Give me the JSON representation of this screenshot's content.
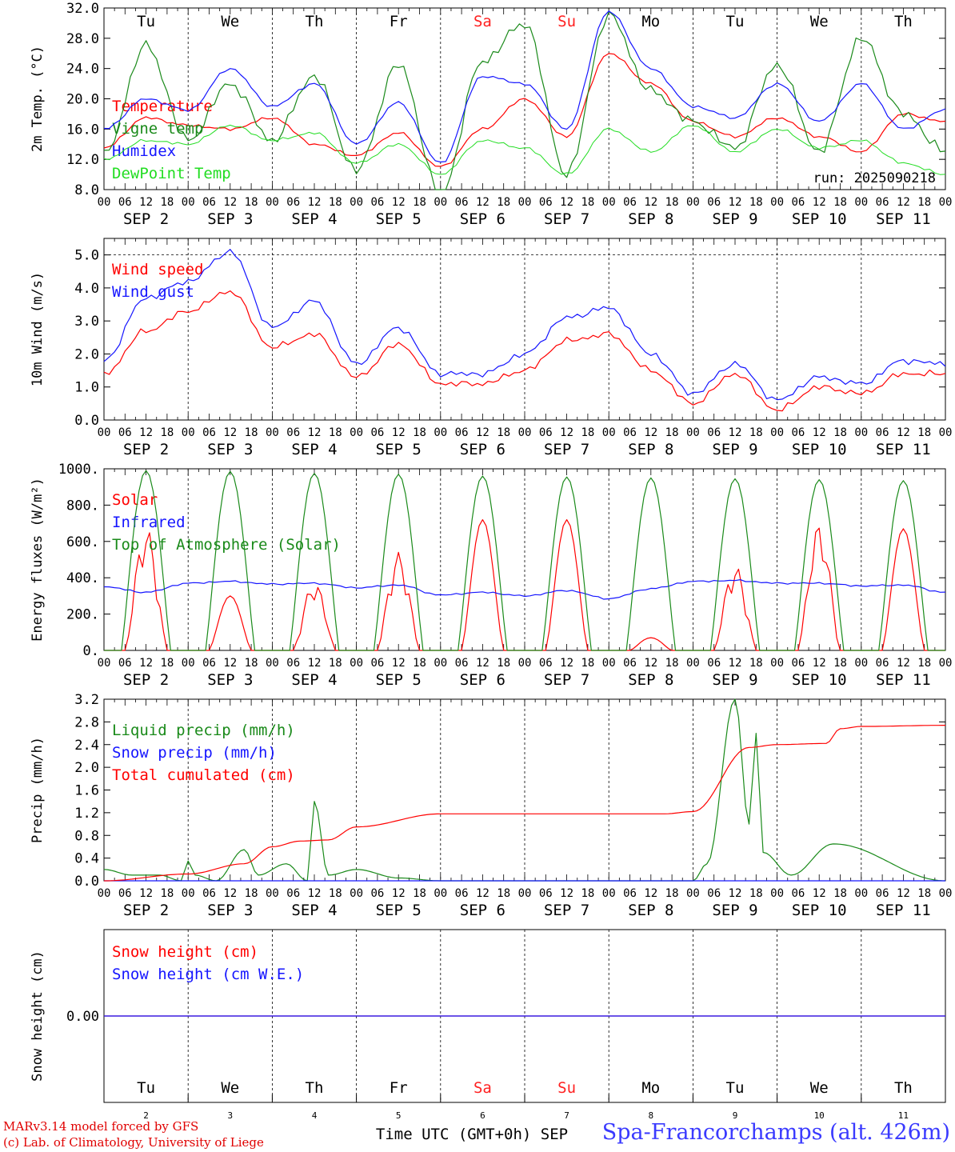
{
  "day_columns": [
    {
      "weekday": "Tu",
      "date": "SEP  2",
      "day_num": "2"
    },
    {
      "weekday": "We",
      "date": "SEP  3",
      "day_num": "3"
    },
    {
      "weekday": "Th",
      "date": "SEP  4",
      "day_num": "4"
    },
    {
      "weekday": "Fr",
      "date": "SEP  5",
      "day_num": "5"
    },
    {
      "weekday": "Sa",
      "date": "SEP  6",
      "day_num": "6"
    },
    {
      "weekday": "Su",
      "date": "SEP  7",
      "day_num": "7"
    },
    {
      "weekday": "Mo",
      "date": "SEP  8",
      "day_num": "8"
    },
    {
      "weekday": "Tu",
      "date": "SEP  9",
      "day_num": "9"
    },
    {
      "weekday": "We",
      "date": "SEP 10",
      "day_num": "10"
    },
    {
      "weekday": "Th",
      "date": "SEP 11",
      "day_num": "11"
    }
  ],
  "hour_ticks": [
    "00",
    "06",
    "12",
    "18"
  ],
  "final_hour_tick": "00",
  "colors": {
    "weekday": "#000000",
    "weekend": "#ff2020",
    "red": "#ff0000",
    "green": "#1a8a1a",
    "blue": "#1515ff",
    "lightgreen": "#22dd22"
  },
  "run_label": "run: 2025090218",
  "x_axis_label": "Time UTC (GMT+0h) SEP",
  "credit_line1": "MARv3.14 model forced by GFS",
  "credit_line2": "(c) Lab. of Climatology, University of Liege",
  "location_label": "Spa-Francorchamps (alt. 426m)",
  "chart_data": [
    {
      "type": "line",
      "ylabel": "2m Temp. (°C)",
      "ylim": [
        8,
        32
      ],
      "yticks": [
        "8.0",
        "12.0",
        "16.0",
        "20.0",
        "24.0",
        "28.0",
        "32.0"
      ],
      "grid": "vertical dotted at day boundaries",
      "series": [
        {
          "name": "Temperature",
          "color": "red",
          "x": [
            0,
            12,
            24,
            36,
            48,
            60,
            72,
            84,
            96,
            108,
            120,
            132,
            144,
            156,
            168,
            180,
            192,
            204,
            216,
            228,
            240
          ],
          "values": [
            13.5,
            17.5,
            16.5,
            16.0,
            17.5,
            14.0,
            12.5,
            15.5,
            11.0,
            16.0,
            20.0,
            15.0,
            26.0,
            22.0,
            17.0,
            15.0,
            17.5,
            15.0,
            13.0,
            18.0,
            17.0
          ]
        },
        {
          "name": "Vigne temp",
          "color": "green",
          "x": [
            0,
            12,
            24,
            36,
            48,
            60,
            72,
            84,
            96,
            108,
            120,
            132,
            144,
            156,
            168,
            180,
            192,
            204,
            216,
            228,
            240
          ],
          "values": [
            12.5,
            27.0,
            14.5,
            22.0,
            14.5,
            23.0,
            10.5,
            24.5,
            7.5,
            25.0,
            30.0,
            10.0,
            31.0,
            21.0,
            17.0,
            13.5,
            24.5,
            13.0,
            28.0,
            18.0,
            13.0
          ]
        },
        {
          "name": "Humidex",
          "color": "blue",
          "x": [
            0,
            12,
            24,
            36,
            48,
            60,
            72,
            84,
            96,
            108,
            120,
            132,
            144,
            156,
            168,
            180,
            192,
            204,
            216,
            228,
            240
          ],
          "values": [
            16.0,
            20.0,
            18.5,
            24.0,
            19.0,
            22.0,
            14.0,
            19.5,
            11.5,
            23.0,
            22.0,
            16.0,
            31.5,
            24.0,
            19.0,
            17.5,
            22.0,
            17.0,
            22.0,
            16.0,
            18.5
          ]
        },
        {
          "name": "DewPoint Temp",
          "color": "lightgreen",
          "x": [
            0,
            12,
            24,
            36,
            48,
            60,
            72,
            84,
            96,
            108,
            120,
            132,
            144,
            156,
            168,
            180,
            192,
            204,
            216,
            228,
            240
          ],
          "values": [
            12.0,
            14.5,
            14.0,
            16.5,
            14.5,
            15.5,
            11.5,
            14.0,
            10.0,
            14.5,
            13.5,
            10.0,
            16.0,
            13.0,
            16.5,
            13.0,
            16.0,
            13.5,
            14.5,
            11.5,
            10.0
          ]
        }
      ]
    },
    {
      "type": "line",
      "ylabel": "10m Wind (m/s)",
      "ylim": [
        0,
        5.5
      ],
      "yticks": [
        "0.0",
        "1.0",
        "2.0",
        "3.0",
        "4.0",
        "5.0"
      ],
      "reference_line": 5.0,
      "series": [
        {
          "name": "Wind speed",
          "color": "red",
          "x": [
            0,
            12,
            24,
            36,
            48,
            60,
            72,
            84,
            96,
            108,
            120,
            132,
            144,
            156,
            168,
            180,
            192,
            204,
            216,
            228,
            240
          ],
          "values": [
            1.4,
            2.7,
            3.3,
            3.9,
            2.2,
            2.6,
            1.3,
            2.3,
            1.1,
            1.1,
            1.5,
            2.4,
            2.6,
            1.5,
            0.5,
            1.4,
            0.3,
            1.0,
            0.8,
            1.4,
            1.4
          ]
        },
        {
          "name": "Wind gust",
          "color": "blue",
          "x": [
            0,
            12,
            24,
            36,
            48,
            60,
            72,
            84,
            96,
            108,
            120,
            132,
            144,
            156,
            168,
            180,
            192,
            204,
            216,
            228,
            240
          ],
          "values": [
            1.8,
            3.7,
            4.2,
            5.1,
            2.8,
            3.6,
            1.7,
            2.8,
            1.4,
            1.4,
            2.0,
            3.1,
            3.4,
            2.0,
            0.8,
            1.7,
            0.6,
            1.3,
            1.1,
            1.8,
            1.7
          ]
        }
      ]
    },
    {
      "type": "line",
      "ylabel": "Energy fluxes (W/m²)",
      "ylim": [
        0,
        1000
      ],
      "yticks": [
        "0.",
        "200.",
        "400.",
        "600.",
        "800.",
        "1000."
      ],
      "series": [
        {
          "name": "Solar",
          "color": "red",
          "daily_peaks": [
            680,
            300,
            380,
            540,
            720,
            720,
            70,
            470,
            700,
            670
          ]
        },
        {
          "name": "Infrared",
          "color": "blue",
          "x": [
            0,
            12,
            24,
            36,
            48,
            60,
            72,
            84,
            96,
            108,
            120,
            132,
            144,
            156,
            168,
            180,
            192,
            204,
            216,
            228,
            240
          ],
          "values": [
            350,
            320,
            370,
            380,
            365,
            370,
            345,
            360,
            305,
            320,
            300,
            330,
            285,
            340,
            380,
            385,
            370,
            370,
            355,
            360,
            320
          ]
        },
        {
          "name": "Top of Atmosphere (Solar)",
          "color": "green",
          "daily_peaks": [
            990,
            985,
            975,
            970,
            960,
            955,
            950,
            945,
            940,
            935
          ]
        }
      ]
    },
    {
      "type": "line",
      "ylabel": "Precip (mm/h)",
      "ylim": [
        0,
        3.2
      ],
      "yticks": [
        "0.0",
        "0.4",
        "0.8",
        "1.2",
        "1.6",
        "2.0",
        "2.4",
        "2.8",
        "3.2"
      ],
      "series": [
        {
          "name": "Liquid precip (mm/h)",
          "color": "green",
          "x": [
            0,
            8,
            16,
            22,
            24,
            26,
            32,
            40,
            44,
            52,
            58,
            60,
            64,
            72,
            84,
            96,
            168,
            172,
            180,
            184,
            186,
            188,
            196,
            208,
            240
          ],
          "values": [
            0.2,
            0.1,
            0.1,
            0.0,
            0.35,
            0.1,
            0.0,
            0.55,
            0.1,
            0.3,
            0.0,
            1.4,
            0.1,
            0.2,
            0.05,
            0.0,
            0.0,
            0.3,
            3.2,
            1.0,
            2.6,
            0.5,
            0.1,
            0.65,
            0.0
          ]
        },
        {
          "name": "Snow precip (mm/h)",
          "color": "blue",
          "x": [
            0,
            240
          ],
          "values": [
            0.0,
            0.0
          ]
        },
        {
          "name": "Total cumulated (cm)",
          "color": "red",
          "x": [
            0,
            24,
            40,
            48,
            56,
            64,
            72,
            96,
            144,
            160,
            168,
            184,
            192,
            206,
            210,
            216,
            240
          ],
          "values": [
            0.0,
            0.12,
            0.3,
            0.6,
            0.7,
            0.72,
            0.95,
            1.18,
            1.18,
            1.18,
            1.22,
            2.35,
            2.4,
            2.42,
            2.68,
            2.72,
            2.74
          ]
        }
      ]
    },
    {
      "type": "line",
      "ylabel": "Snow height (cm)",
      "yticks": [
        "0.00"
      ],
      "series": [
        {
          "name": "Snow height (cm)",
          "color": "red",
          "x": [
            0,
            240
          ],
          "values": [
            0.0,
            0.0
          ]
        },
        {
          "name": "Snow height (cm W.E.)",
          "color": "blue",
          "x": [
            0,
            240
          ],
          "values": [
            0.0,
            0.0
          ]
        }
      ]
    }
  ]
}
